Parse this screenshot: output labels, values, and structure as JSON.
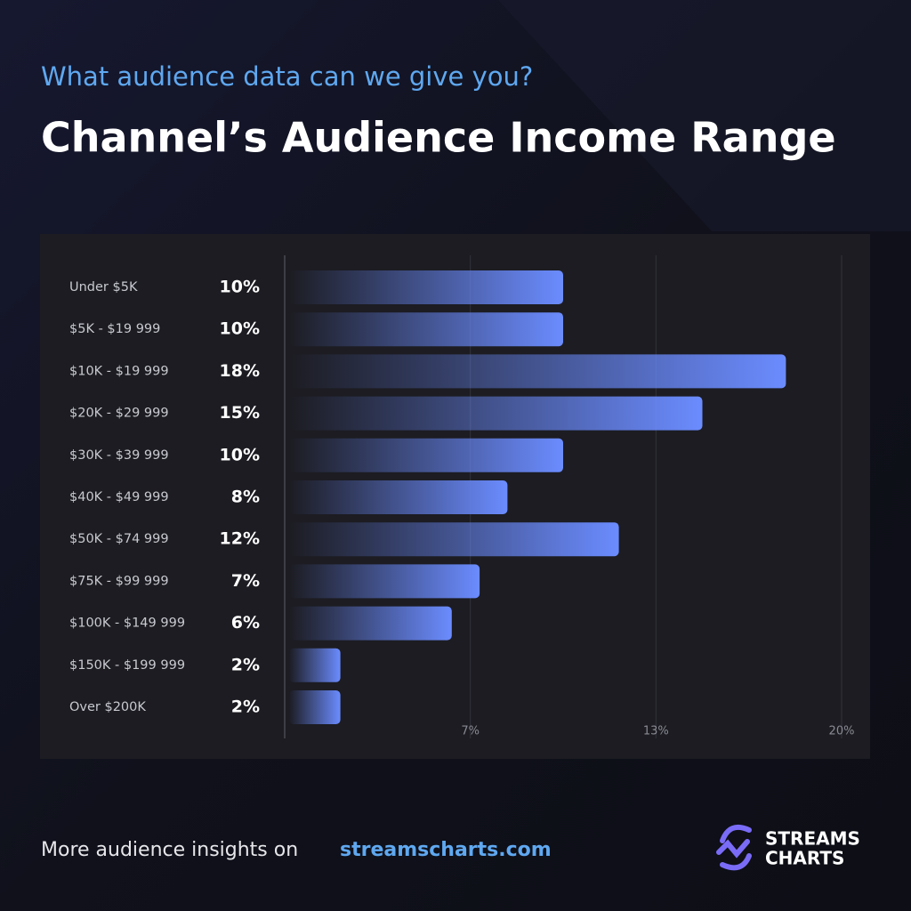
{
  "chart_data": {
    "type": "bar",
    "orientation": "horizontal",
    "subtitle": "What audience data can we give you?",
    "title": "Channel’s Audience Income Range",
    "categories": [
      "Under $5K",
      "$5K - $19 999",
      "$10K - $19 999",
      "$20K - $29 999",
      "$30K - $39 999",
      "$40K - $49 999",
      "$50K - $74 999",
      "$75K - $99 999",
      "$100K - $149 999",
      "$150K - $199 999",
      "Over $200K"
    ],
    "values": [
      10,
      10,
      18,
      15,
      10,
      8,
      12,
      7,
      6,
      2,
      2
    ],
    "value_labels": [
      "10%",
      "10%",
      "18%",
      "15%",
      "10%",
      "8%",
      "12%",
      "7%",
      "6%",
      "2%",
      "2%"
    ],
    "color": "#6b8cff",
    "xlim": [
      0,
      20
    ],
    "xticks": [
      {
        "value": 6.667,
        "label": "7%"
      },
      {
        "value": 13.333,
        "label": "13%"
      },
      {
        "value": 20,
        "label": "20%"
      }
    ],
    "grid": true
  },
  "footer": {
    "text": "More audience insights on",
    "link": "streamscharts.com",
    "logo": [
      "STREAMS",
      "CHARTS"
    ]
  }
}
